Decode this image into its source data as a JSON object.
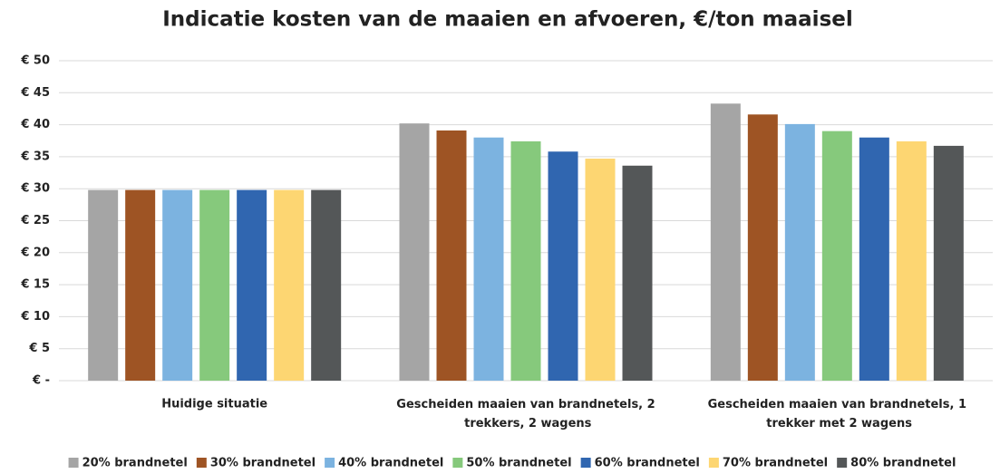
{
  "chart_data": {
    "type": "bar",
    "title": "Indicatie kosten van de maaien en afvoeren, €/ton maaisel",
    "categories": [
      "Huidige situatie",
      "Gescheiden maaien van brandnetels, 2 trekkers, 2 wagens",
      "Gescheiden maaien van brandnetels, 1 trekker met 2 wagens"
    ],
    "series": [
      {
        "name": "20% brandnetel",
        "color": "#a5a5a5",
        "values": [
          29.8,
          40.2,
          43.3
        ]
      },
      {
        "name": "30% brandnetel",
        "color": "#9e5424",
        "values": [
          29.8,
          39.1,
          41.6
        ]
      },
      {
        "name": "40% brandnetel",
        "color": "#7cb3e0",
        "values": [
          29.8,
          38.0,
          40.1
        ]
      },
      {
        "name": "50% brandnetel",
        "color": "#86c97c",
        "values": [
          29.8,
          37.4,
          39.0
        ]
      },
      {
        "name": "60% brandnetel",
        "color": "#3066b0",
        "values": [
          29.8,
          35.8,
          38.0
        ]
      },
      {
        "name": "70% brandnetel",
        "color": "#fdd672",
        "values": [
          29.8,
          34.7,
          37.4
        ]
      },
      {
        "name": "80% brandnetel",
        "color": "#545758",
        "values": [
          29.8,
          33.6,
          36.7
        ]
      }
    ],
    "ylim": [
      0,
      50
    ],
    "yticks": [
      {
        "value": 0,
        "label": "€ -"
      },
      {
        "value": 5,
        "label": "€ 5"
      },
      {
        "value": 10,
        "label": "€ 10"
      },
      {
        "value": 15,
        "label": "€ 15"
      },
      {
        "value": 20,
        "label": "€ 20"
      },
      {
        "value": 25,
        "label": "€ 25"
      },
      {
        "value": 30,
        "label": "€ 30"
      },
      {
        "value": 35,
        "label": "€ 35"
      },
      {
        "value": 40,
        "label": "€ 40"
      },
      {
        "value": 45,
        "label": "€ 45"
      },
      {
        "value": 50,
        "label": "€ 50"
      }
    ],
    "grid": true,
    "legend": "bottom"
  }
}
